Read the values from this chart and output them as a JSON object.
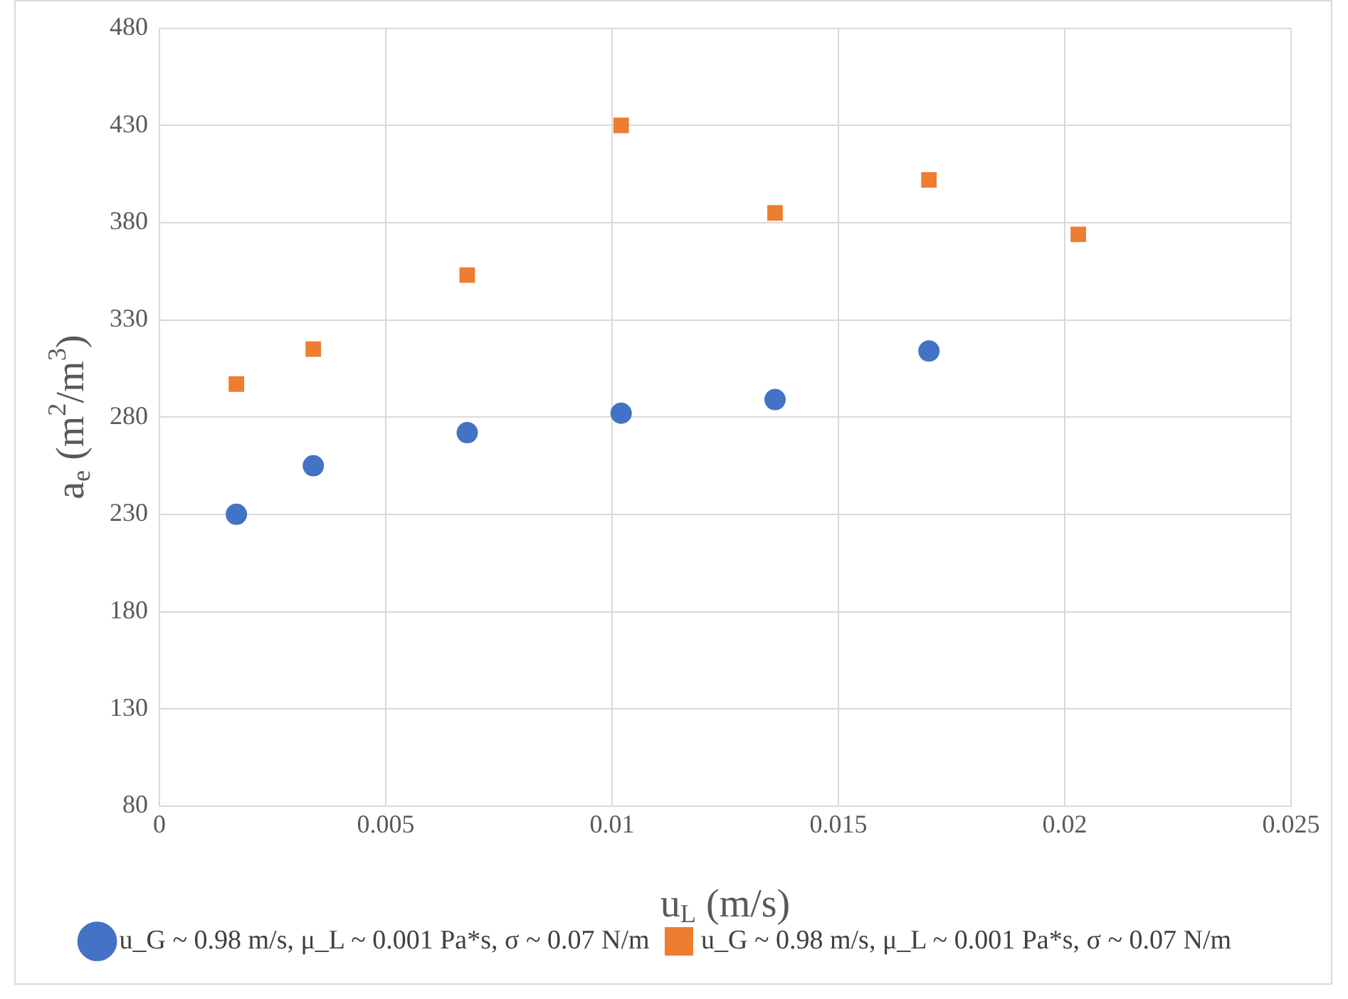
{
  "chart_data": {
    "type": "scatter",
    "xlabel": "u$_{L}$ (m/s)",
    "ylabel": "a$_{e}$ (m$^{2}$/m$^{3}$)",
    "xlim": [
      0,
      0.025
    ],
    "xticks": [
      0,
      0.005,
      0.01,
      0.015,
      0.02,
      0.025
    ],
    "ylim": [
      80,
      480
    ],
    "yticks": [
      80,
      130,
      180,
      230,
      280,
      330,
      380,
      430,
      480
    ],
    "grid": true,
    "legend": "bottom",
    "series": [
      {
        "name": "u_G ~ 0.98 m/s, μ_L ~ 0.001 Pa*s, σ ~ 0.07 N/m",
        "color": "#4472c4",
        "marker": "circle",
        "x": [
          0.0017,
          0.0034,
          0.0068,
          0.0102,
          0.0136,
          0.017
        ],
        "values": [
          230,
          255,
          272,
          282,
          289,
          314
        ]
      },
      {
        "name": "u_G ~ 0.98 m/s, μ_L ~ 0.001 Pa*s, σ ~ 0.07 N/m",
        "color": "#ed7d31",
        "marker": "square",
        "x": [
          0.0017,
          0.0034,
          0.0068,
          0.0102,
          0.0136,
          0.017,
          0.0203
        ],
        "values": [
          297,
          315,
          353,
          430,
          385,
          402,
          374
        ]
      }
    ]
  }
}
